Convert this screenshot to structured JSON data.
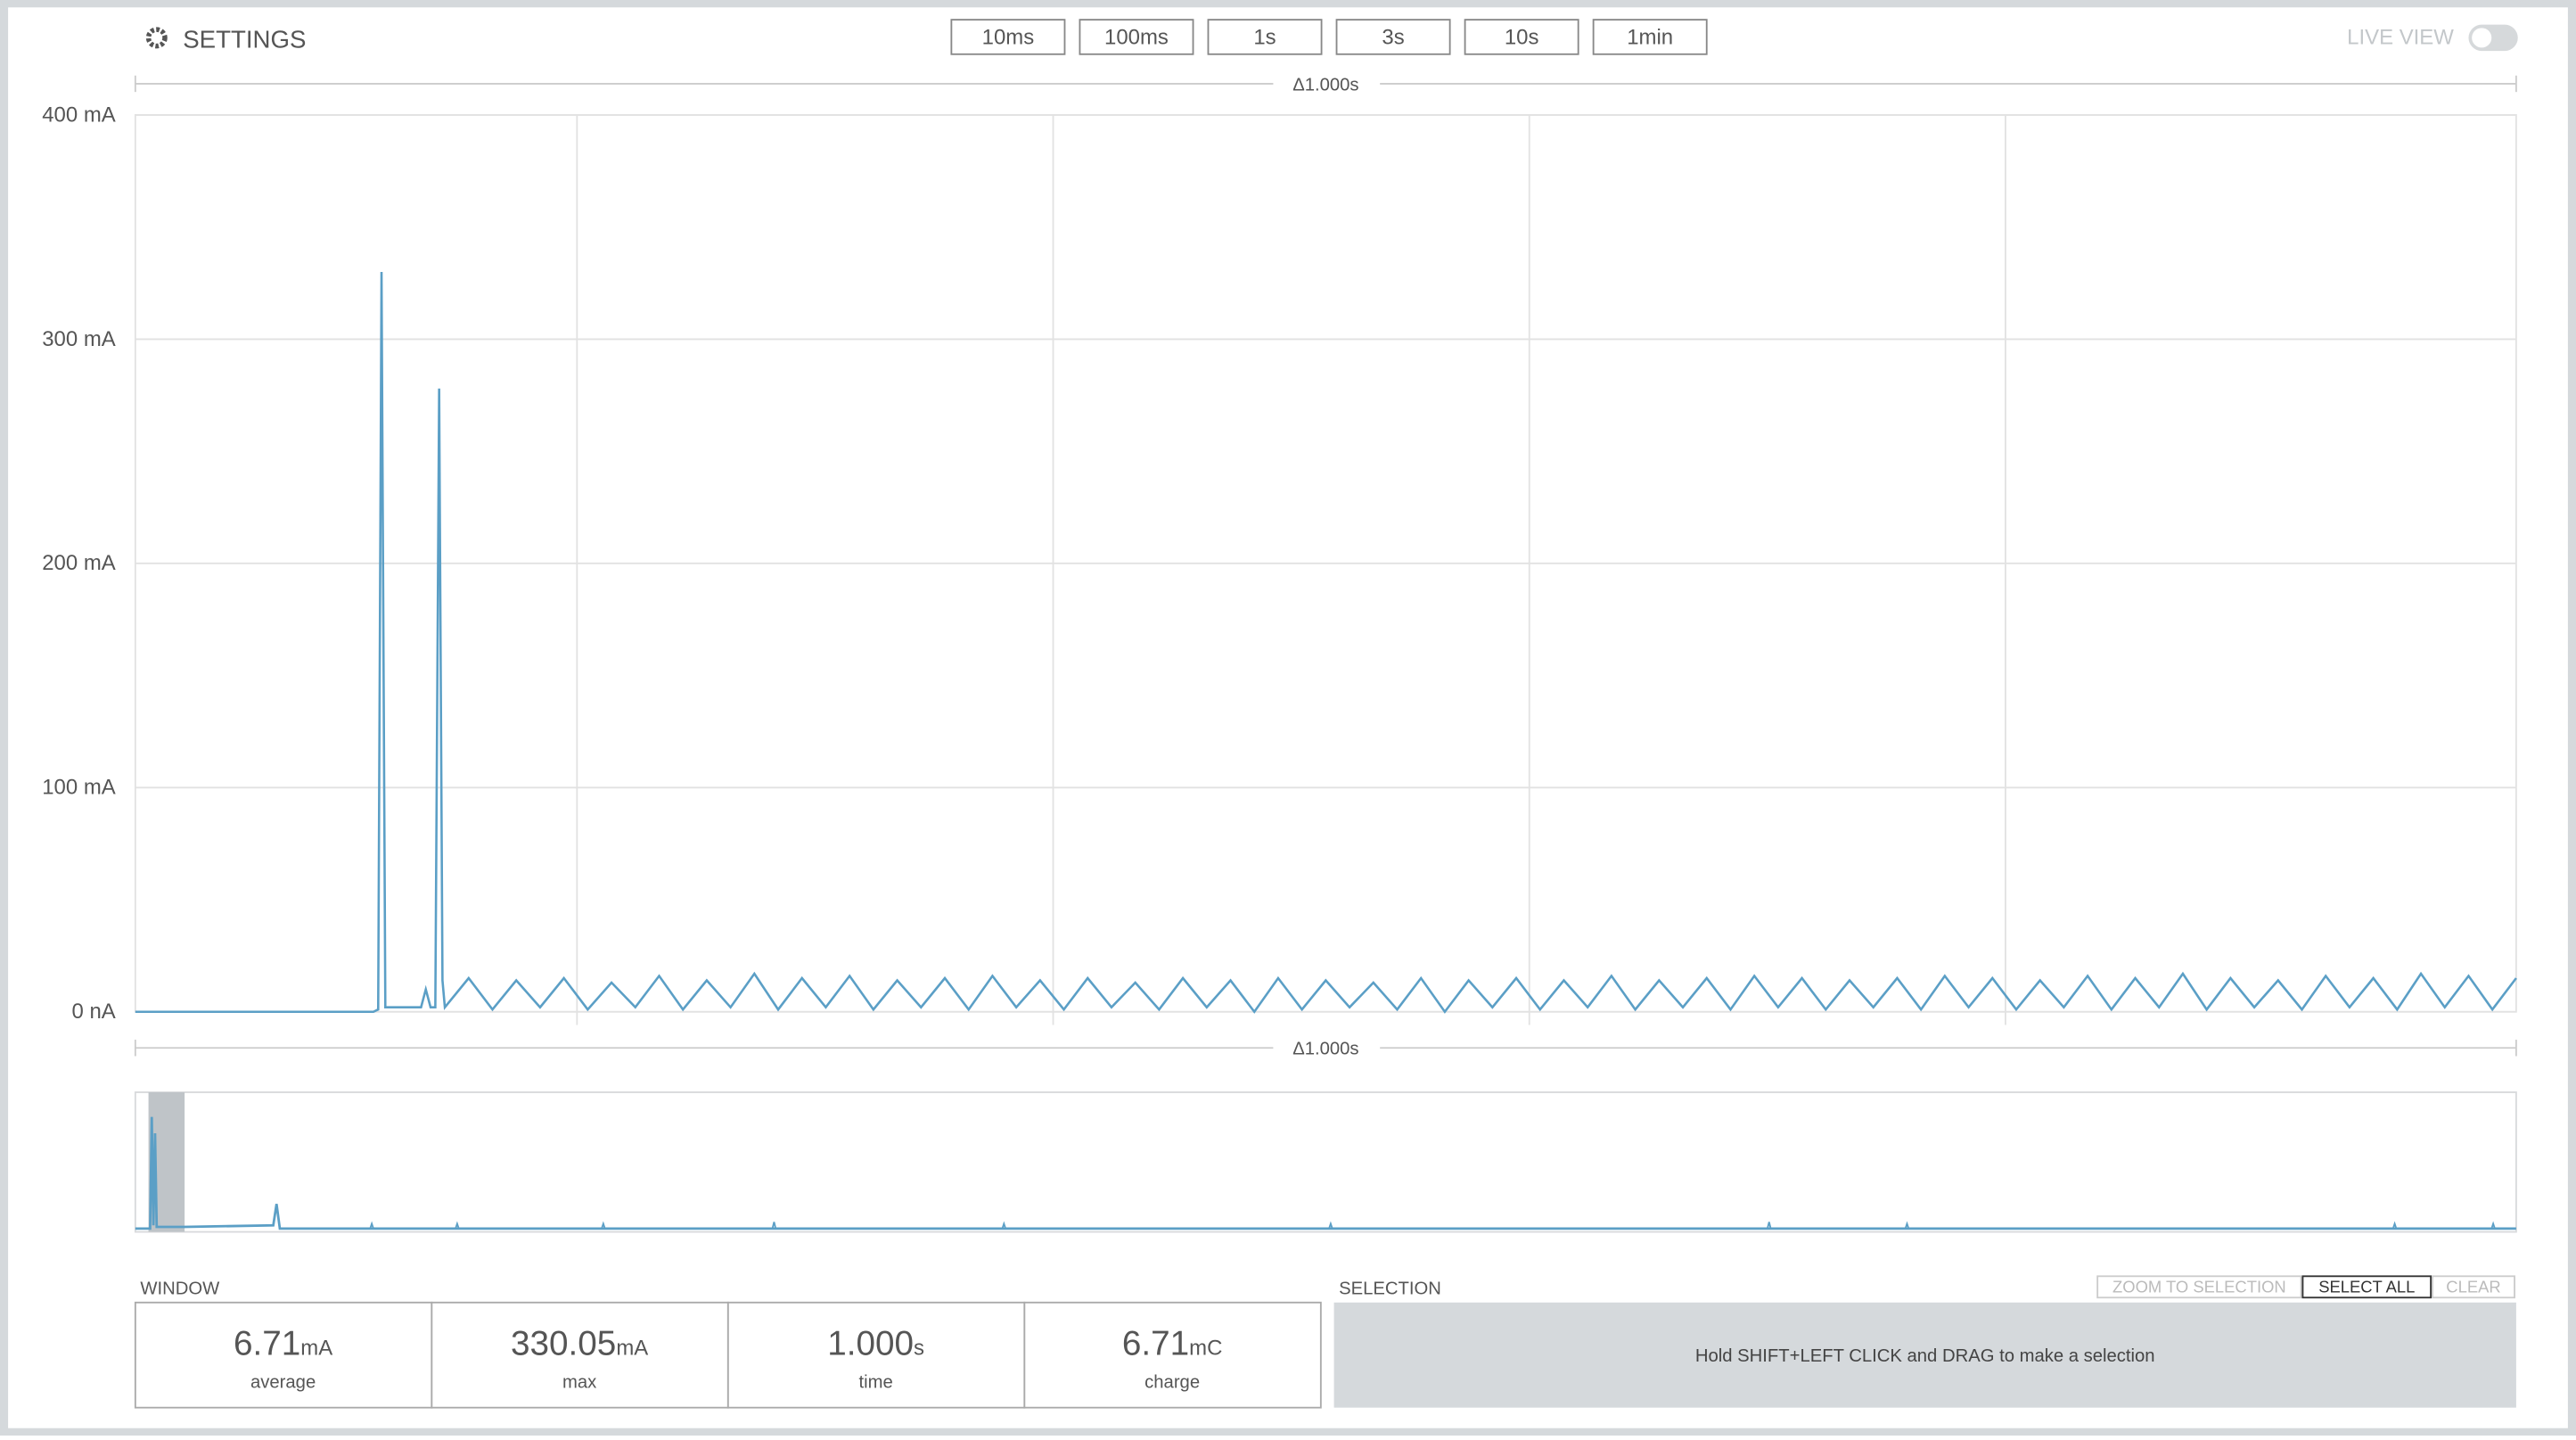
{
  "header": {
    "settings": "SETTINGS",
    "ranges": [
      "10ms",
      "100ms",
      "1s",
      "3s",
      "10s",
      "1min"
    ],
    "live_view": "LIVE VIEW"
  },
  "chart_data": {
    "type": "line",
    "top_label": "Δ1.000s",
    "bottom_label": "Δ1.000s",
    "color": "#5b9fc6",
    "xlim": [
      0,
      1
    ],
    "xticks": [
      0.1855,
      0.3855,
      0.5855,
      0.7855
    ],
    "ylim": [
      0,
      400
    ],
    "yticks": [
      {
        "value": 0,
        "label": "0 nA"
      },
      {
        "value": 100,
        "label": "100 mA"
      },
      {
        "value": 200,
        "label": "200 mA"
      },
      {
        "value": 300,
        "label": "300 mA"
      },
      {
        "value": 400,
        "label": "400 mA"
      }
    ],
    "grid": true,
    "x": [
      0,
      0.1,
      0.102,
      0.1034,
      0.105,
      0.11,
      0.12,
      0.122,
      0.124,
      0.126,
      0.1276,
      0.129,
      0.13,
      0.14,
      0.15,
      0.16,
      0.17,
      0.18,
      0.19,
      0.2,
      0.21,
      0.22,
      0.23,
      0.24,
      0.25,
      0.26,
      0.27,
      0.28,
      0.29,
      0.3,
      0.31,
      0.32,
      0.33,
      0.34,
      0.35,
      0.36,
      0.37,
      0.38,
      0.39,
      0.4,
      0.41,
      0.42,
      0.43,
      0.44,
      0.45,
      0.46,
      0.47,
      0.48,
      0.49,
      0.5,
      0.51,
      0.52,
      0.53,
      0.54,
      0.55,
      0.56,
      0.57,
      0.58,
      0.59,
      0.6,
      0.61,
      0.62,
      0.63,
      0.64,
      0.65,
      0.66,
      0.67,
      0.68,
      0.69,
      0.7,
      0.71,
      0.72,
      0.73,
      0.74,
      0.75,
      0.76,
      0.77,
      0.78,
      0.79,
      0.8,
      0.81,
      0.82,
      0.83,
      0.84,
      0.85,
      0.86,
      0.87,
      0.88,
      0.89,
      0.9,
      0.91,
      0.92,
      0.93,
      0.94,
      0.95,
      0.96,
      0.97,
      0.98,
      0.99,
      1.0
    ],
    "values": [
      0,
      0,
      1,
      330,
      2,
      2,
      2,
      10,
      2,
      2,
      278,
      14,
      2,
      15,
      1,
      14,
      2,
      15,
      1,
      13,
      2,
      16,
      1,
      14,
      2,
      17,
      1,
      15,
      2,
      16,
      1,
      14,
      2,
      15,
      1,
      16,
      2,
      14,
      1,
      15,
      2,
      13,
      1,
      15,
      2,
      14,
      0,
      15,
      1,
      14,
      2,
      13,
      1,
      15,
      0,
      14,
      2,
      15,
      1,
      14,
      2,
      16,
      1,
      14,
      2,
      15,
      1,
      16,
      2,
      15,
      1,
      14,
      2,
      15,
      1,
      16,
      2,
      15,
      1,
      14,
      2,
      16,
      1,
      15,
      2,
      17,
      1,
      15,
      2,
      14,
      1,
      16,
      2,
      15,
      1,
      17,
      2,
      16,
      1,
      15
    ]
  },
  "window": {
    "title": "WINDOW",
    "stats": [
      {
        "value": "6.71",
        "unit": "mA",
        "label": "average"
      },
      {
        "value": "330.05",
        "unit": "mA",
        "label": "max"
      },
      {
        "value": "1.000",
        "unit": "s",
        "label": "time"
      },
      {
        "value": "6.71",
        "unit": "mC",
        "label": "charge"
      }
    ]
  },
  "selection": {
    "title": "SELECTION",
    "buttons": [
      "ZOOM TO SELECTION",
      "SELECT ALL",
      "CLEAR"
    ],
    "hint": "Hold SHIFT+LEFT CLICK and DRAG to make a selection"
  }
}
